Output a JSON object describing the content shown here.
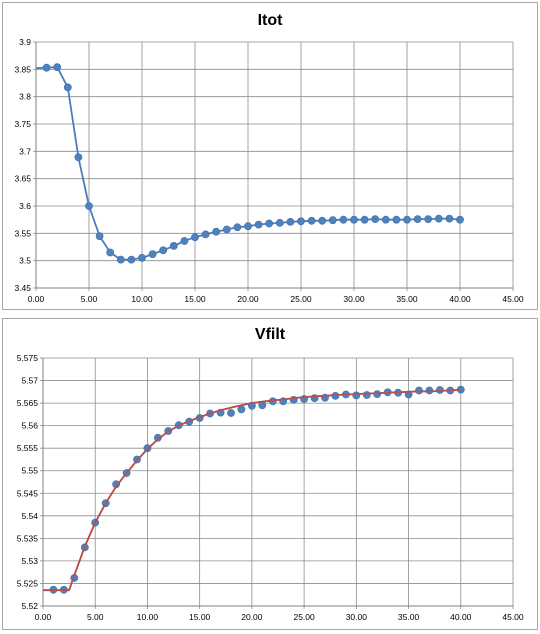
{
  "chart_data": [
    {
      "type": "line",
      "title": "Itot",
      "xlabel": "",
      "ylabel": "",
      "xlim": [
        0,
        45
      ],
      "ylim": [
        3.45,
        3.9
      ],
      "x_ticks": [
        "0.00",
        "5.00",
        "10.00",
        "15.00",
        "20.00",
        "25.00",
        "30.00",
        "35.00",
        "40.00",
        "45.00"
      ],
      "y_ticks": [
        "3.45",
        "3.5",
        "3.55",
        "3.6",
        "3.65",
        "3.7",
        "3.75",
        "3.8",
        "3.85",
        "3.9"
      ],
      "grid": true,
      "legend": "none",
      "series": [
        {
          "style": "line+markers",
          "line_color": "#4a7ebb",
          "marker_color": "#4f81bd",
          "x": [
            0,
            1,
            2,
            3,
            4,
            5,
            6,
            7,
            8,
            9,
            10,
            11,
            12,
            13,
            14,
            15,
            16,
            17,
            18,
            19,
            20,
            21,
            22,
            23,
            24,
            25,
            26,
            27,
            28,
            29,
            30,
            31,
            32,
            33,
            34,
            35,
            36,
            37,
            38,
            39,
            40
          ],
          "y": [
            3.852,
            3.853,
            3.854,
            3.817,
            3.689,
            3.6,
            3.545,
            3.515,
            3.502,
            3.502,
            3.505,
            3.512,
            3.519,
            3.527,
            3.536,
            3.543,
            3.548,
            3.553,
            3.557,
            3.561,
            3.563,
            3.566,
            3.568,
            3.569,
            3.571,
            3.572,
            3.573,
            3.573,
            3.574,
            3.575,
            3.575,
            3.575,
            3.576,
            3.575,
            3.575,
            3.575,
            3.576,
            3.576,
            3.577,
            3.577,
            3.575
          ],
          "markers_from_index": 1
        }
      ]
    },
    {
      "type": "line",
      "title": "Vfilt",
      "xlabel": "",
      "ylabel": "",
      "xlim": [
        0,
        45
      ],
      "ylim": [
        5.52,
        5.575
      ],
      "x_ticks": [
        "0.00",
        "5.00",
        "10.00",
        "15.00",
        "20.00",
        "25.00",
        "30.00",
        "35.00",
        "40.00",
        "45.00"
      ],
      "y_ticks": [
        "5.52",
        "5.525",
        "5.53",
        "5.535",
        "5.54",
        "5.545",
        "5.55",
        "5.555",
        "5.56",
        "5.565",
        "5.57",
        "5.575"
      ],
      "grid": true,
      "legend": "none",
      "series": [
        {
          "style": "markers",
          "marker_color": "#4f81bd",
          "x": [
            1,
            2,
            3,
            4,
            5,
            6,
            7,
            8,
            9,
            10,
            11,
            12,
            13,
            14,
            15,
            16,
            17,
            18,
            19,
            20,
            21,
            22,
            23,
            24,
            25,
            26,
            27,
            28,
            29,
            30,
            31,
            32,
            33,
            34,
            35,
            36,
            37,
            38,
            39,
            40
          ],
          "y": [
            5.5236,
            5.5236,
            5.5262,
            5.533,
            5.5385,
            5.5428,
            5.547,
            5.5495,
            5.5525,
            5.555,
            5.5573,
            5.5588,
            5.5601,
            5.5609,
            5.5617,
            5.5627,
            5.5629,
            5.5628,
            5.5636,
            5.5644,
            5.5645,
            5.5654,
            5.5654,
            5.5657,
            5.5659,
            5.5661,
            5.5662,
            5.5666,
            5.5669,
            5.5667,
            5.5668,
            5.567,
            5.5674,
            5.5673,
            5.5669,
            5.5678,
            5.5678,
            5.5679,
            5.5678,
            5.568
          ]
        },
        {
          "style": "line",
          "line_color": "#be4b48",
          "x": [
            0,
            1,
            2,
            2.5,
            3,
            4,
            5,
            6,
            7,
            8,
            9,
            10,
            11,
            12,
            13,
            14,
            15,
            16,
            17,
            18,
            19,
            20,
            21,
            22,
            23,
            24,
            25,
            26,
            27,
            28,
            29,
            30,
            31,
            32,
            33,
            34,
            35,
            36,
            37,
            38,
            39,
            40
          ],
          "y": [
            5.5235,
            5.5235,
            5.5235,
            5.5235,
            5.5268,
            5.5332,
            5.5385,
            5.5428,
            5.5465,
            5.5495,
            5.5523,
            5.5548,
            5.557,
            5.5587,
            5.56,
            5.561,
            5.5619,
            5.5627,
            5.5634,
            5.564,
            5.5645,
            5.565,
            5.5653,
            5.5656,
            5.5658,
            5.5661,
            5.5663,
            5.5665,
            5.5666,
            5.5668,
            5.5669,
            5.567,
            5.5671,
            5.5672,
            5.5673,
            5.5674,
            5.5675,
            5.5676,
            5.5676,
            5.5677,
            5.5678,
            5.568
          ]
        }
      ]
    }
  ]
}
